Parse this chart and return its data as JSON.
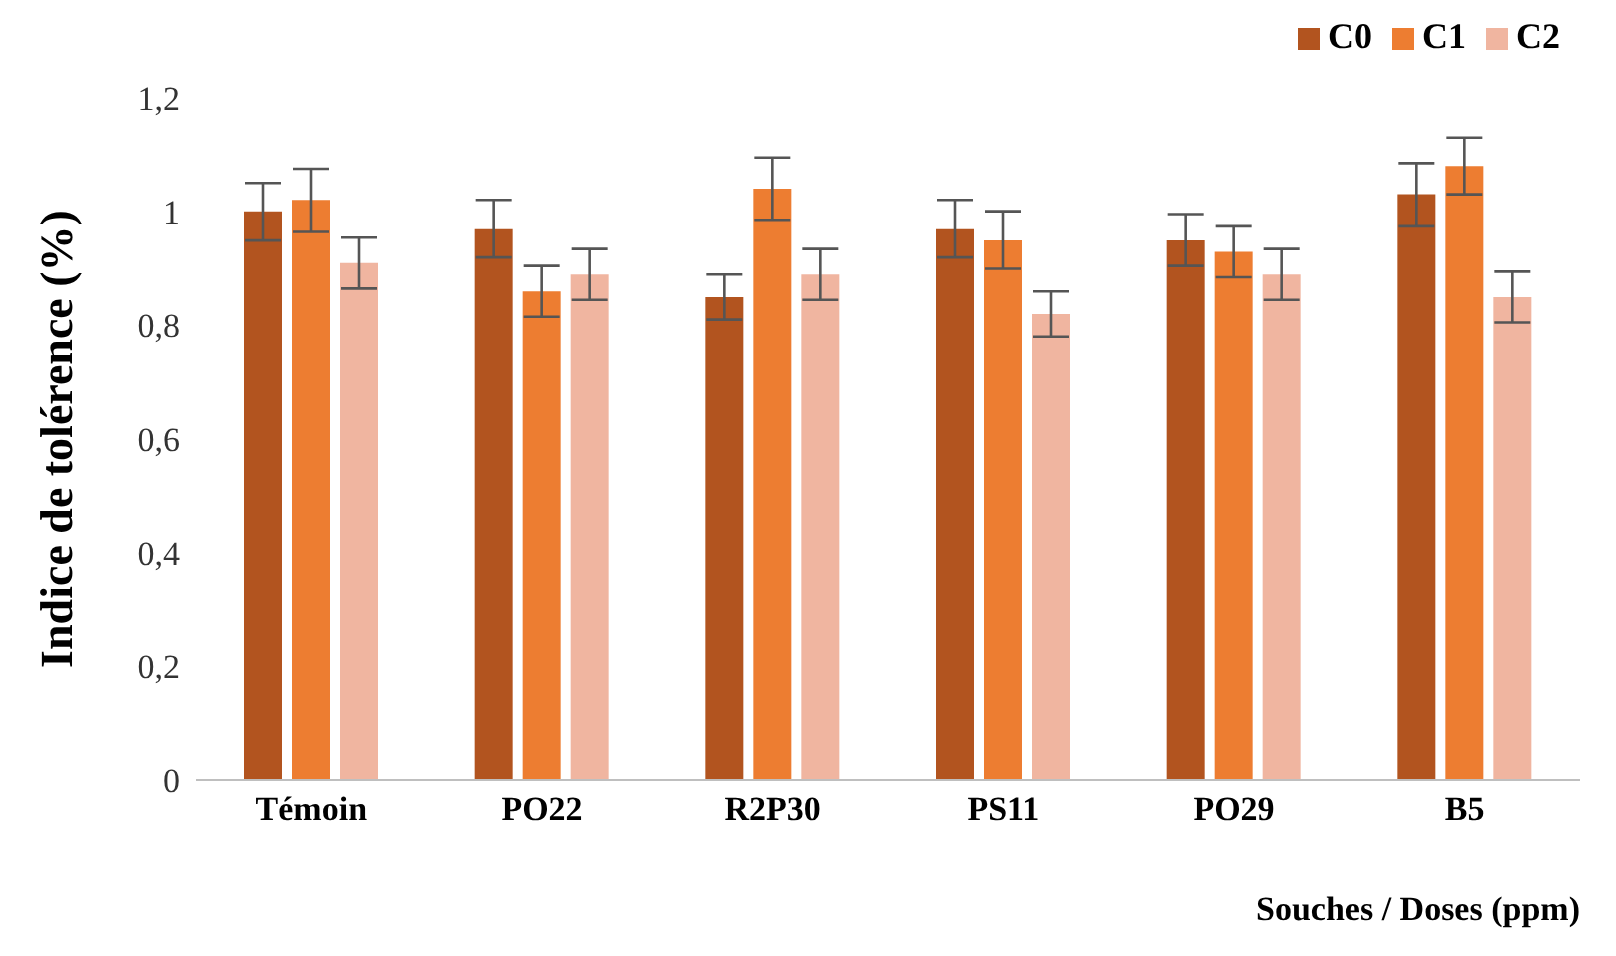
{
  "chart_data": {
    "type": "bar",
    "ylabel": "Indice de tolérence (%)",
    "xlabel": "Souches / Doses (ppm)",
    "categories": [
      "Témoin",
      "PO22",
      "R2P30",
      "PS11",
      "PO29",
      "B5"
    ],
    "series": [
      {
        "name": "C0",
        "color": "#b2541f",
        "values": [
          1.0,
          0.97,
          0.85,
          0.97,
          0.95,
          1.03
        ],
        "errors": [
          0.05,
          0.05,
          0.04,
          0.05,
          0.045,
          0.055
        ]
      },
      {
        "name": "C1",
        "color": "#ed7d31",
        "values": [
          1.02,
          0.86,
          1.04,
          0.95,
          0.93,
          1.08
        ],
        "errors": [
          0.055,
          0.045,
          0.055,
          0.05,
          0.045,
          0.05
        ]
      },
      {
        "name": "C2",
        "color": "#f0b5a0",
        "values": [
          0.91,
          0.89,
          0.89,
          0.82,
          0.89,
          0.85
        ],
        "errors": [
          0.045,
          0.045,
          0.045,
          0.04,
          0.045,
          0.045
        ]
      }
    ],
    "ylim": [
      0,
      1.2
    ],
    "yticks": [
      0,
      {
        "value": 0.2,
        "label": "0,2"
      },
      {
        "value": 0.4,
        "label": "0,4"
      },
      {
        "value": 0.6,
        "label": "0,6"
      },
      {
        "value": 0.8,
        "label": "0,8"
      },
      1,
      {
        "value": 1.2,
        "label": "1,2"
      }
    ],
    "grid": false,
    "legend": "top right"
  }
}
